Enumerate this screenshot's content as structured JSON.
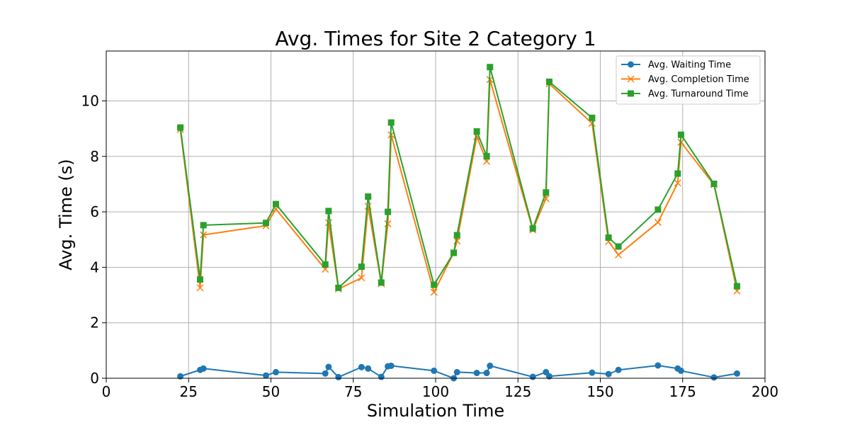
{
  "chart_data": {
    "type": "line",
    "title": "Avg. Times for Site 2 Category 1",
    "xlabel": "Simulation Time",
    "ylabel": "Avg. Time (s)",
    "xlim": [
      0,
      200
    ],
    "ylim": [
      0,
      11.8
    ],
    "xticks": [
      0,
      25,
      50,
      75,
      100,
      125,
      150,
      175,
      200
    ],
    "yticks": [
      0,
      2,
      4,
      6,
      8,
      10
    ],
    "grid": true,
    "legend_position": "top-right",
    "x": [
      22.5,
      28.5,
      29.5,
      48.5,
      51.5,
      66.5,
      67.5,
      70.5,
      77.5,
      79.5,
      83.5,
      85.5,
      86.5,
      99.5,
      105.5,
      106.5,
      112.5,
      115.5,
      116.5,
      129.5,
      133.5,
      134.5,
      147.5,
      152.5,
      155.5,
      167.5,
      173.5,
      174.5,
      184.5,
      191.5
    ],
    "series": [
      {
        "name": "Avg. Waiting Time",
        "color": "#1f77b4",
        "marker": "circle",
        "values": [
          0.07,
          0.3,
          0.35,
          0.1,
          0.22,
          0.17,
          0.41,
          0.04,
          0.4,
          0.35,
          0.05,
          0.43,
          0.45,
          0.27,
          0.0,
          0.22,
          0.19,
          0.19,
          0.45,
          0.05,
          0.22,
          0.07,
          0.2,
          0.15,
          0.3,
          0.46,
          0.35,
          0.27,
          0.03,
          0.17
        ]
      },
      {
        "name": "Avg. Completion Time",
        "color": "#ff7f0e",
        "marker": "x",
        "values": [
          8.97,
          3.26,
          5.17,
          5.5,
          6.1,
          3.93,
          5.61,
          3.22,
          3.62,
          6.2,
          3.41,
          5.57,
          8.78,
          3.1,
          4.53,
          4.95,
          8.71,
          7.82,
          10.77,
          5.35,
          6.48,
          10.62,
          9.19,
          4.93,
          4.45,
          5.62,
          7.04,
          8.51,
          6.98,
          3.15
        ]
      },
      {
        "name": "Avg. Turnaround Time",
        "color": "#2ca02c",
        "marker": "square",
        "values": [
          9.04,
          3.56,
          5.52,
          5.6,
          6.28,
          4.1,
          6.03,
          3.26,
          4.02,
          6.55,
          3.45,
          6.0,
          9.22,
          3.37,
          4.52,
          5.16,
          8.9,
          8.01,
          11.22,
          5.4,
          6.7,
          10.69,
          9.39,
          5.07,
          4.75,
          6.08,
          7.38,
          8.78,
          7.01,
          3.32
        ]
      }
    ]
  }
}
